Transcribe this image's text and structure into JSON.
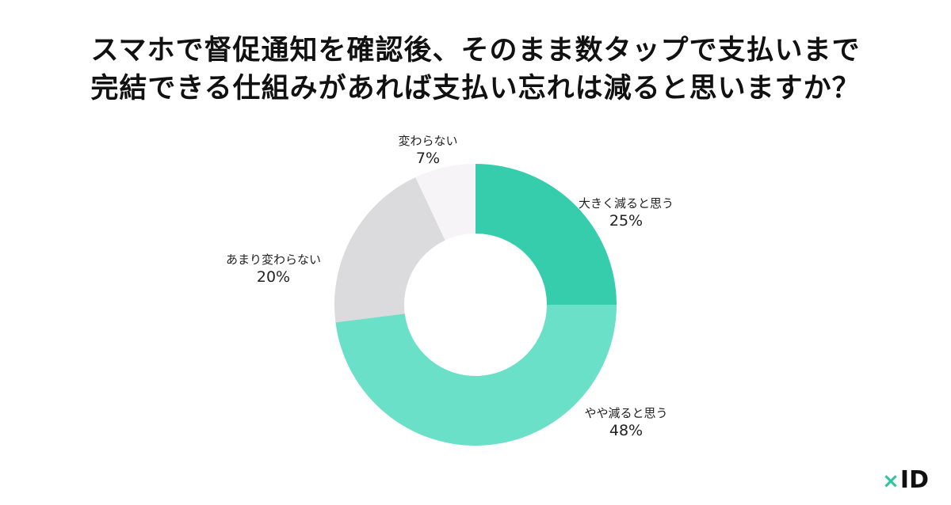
{
  "title": {
    "line1": "スマホで督促通知を確認後、そのまま数タップで支払いまで",
    "line2": "完結できる仕組みがあれば支払い忘れは減ると思いますか？"
  },
  "chart_data": {
    "type": "pie",
    "donut": true,
    "start_angle_deg": 0,
    "direction": "clockwise",
    "slices": [
      {
        "label": "大きく減ると思う",
        "value": 25,
        "display": "25%",
        "color": "#36cdad"
      },
      {
        "label": "やや減ると思う",
        "value": 48,
        "display": "48%",
        "color": "#6ae0c8"
      },
      {
        "label": "あまり変わらない",
        "value": 20,
        "display": "20%",
        "color": "#dbdadd"
      },
      {
        "label": "変わらない",
        "value": 7,
        "display": "7%",
        "color": "#f6f4f7"
      }
    ]
  },
  "logo": {
    "mark": "×",
    "text": "ID",
    "mark_color": "#2ec4a0"
  }
}
